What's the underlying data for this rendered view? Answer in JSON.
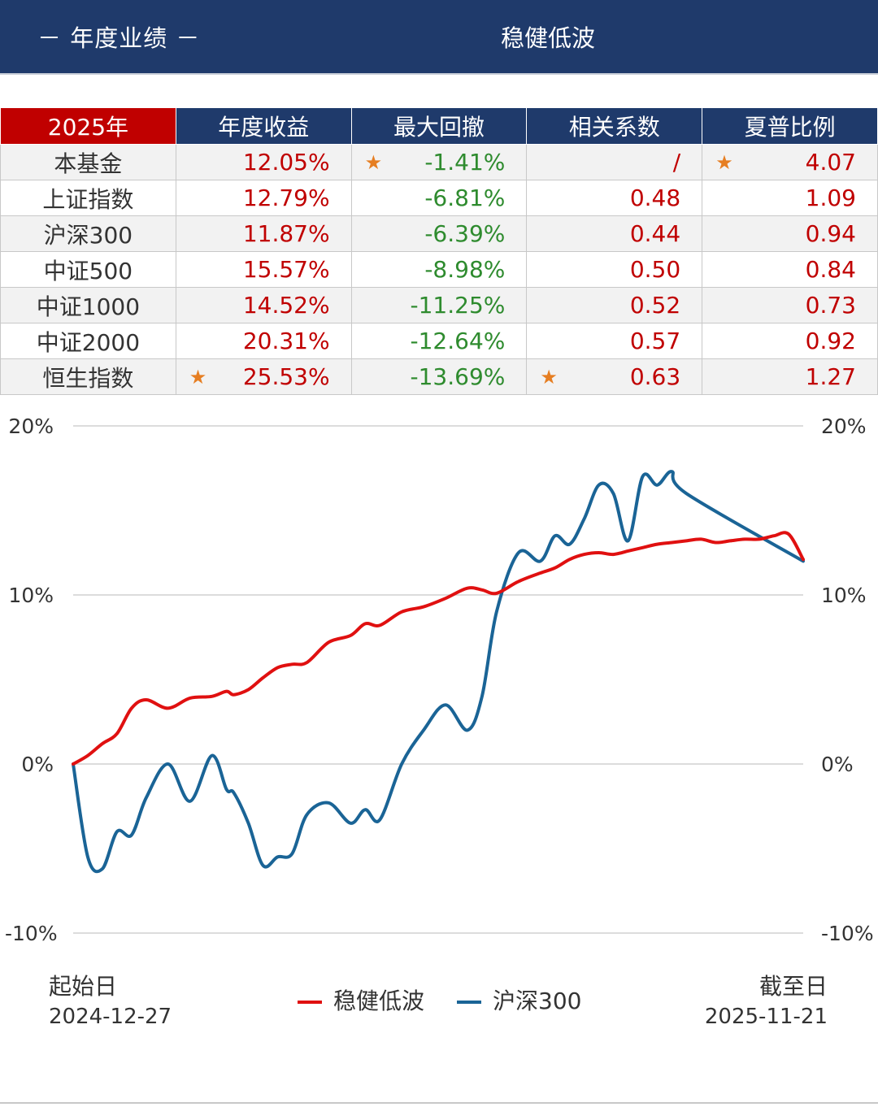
{
  "header": {
    "section_label": "－ 年度业绩 －",
    "fund_name": "稳健低波"
  },
  "table": {
    "columns": [
      "2025年",
      "年度收益",
      "最大回撤",
      "相关系数",
      "夏普比例"
    ],
    "rows": [
      {
        "name": "本基金",
        "return": "12.05%",
        "drawdown": "-1.41%",
        "corr": "/",
        "sharpe": "4.07",
        "stars": [
          "drawdown",
          "sharpe"
        ]
      },
      {
        "name": "上证指数",
        "return": "12.79%",
        "drawdown": "-6.81%",
        "corr": "0.48",
        "sharpe": "1.09",
        "stars": []
      },
      {
        "name": "沪深300",
        "return": "11.87%",
        "drawdown": "-6.39%",
        "corr": "0.44",
        "sharpe": "0.94",
        "stars": []
      },
      {
        "name": "中证500",
        "return": "15.57%",
        "drawdown": "-8.98%",
        "corr": "0.50",
        "sharpe": "0.84",
        "stars": []
      },
      {
        "name": "中证1000",
        "return": "14.52%",
        "drawdown": "-11.25%",
        "corr": "0.52",
        "sharpe": "0.73",
        "stars": []
      },
      {
        "name": "中证2000",
        "return": "20.31%",
        "drawdown": "-12.64%",
        "corr": "0.57",
        "sharpe": "0.92",
        "stars": []
      },
      {
        "name": "恒生指数",
        "return": "25.53%",
        "drawdown": "-13.69%",
        "corr": "0.63",
        "sharpe": "1.27",
        "stars": [
          "return",
          "corr"
        ]
      }
    ],
    "star_symbol": "★",
    "colors": {
      "header_bg": "#1f3a6b",
      "year_bg": "#c00000",
      "positive": "#c00000",
      "negative": "#2e8b2e",
      "star": "#e67e22"
    }
  },
  "chart_data": {
    "type": "line",
    "yticks": [
      "20%",
      "10%",
      "0%",
      "-10%"
    ],
    "ylim": [
      -10,
      20
    ],
    "x": [
      0,
      2,
      4,
      6,
      8,
      10,
      13,
      16,
      19,
      21,
      22,
      24,
      26,
      28,
      30,
      32,
      35,
      38,
      40,
      42,
      45,
      48,
      51,
      54,
      56,
      58,
      61,
      64,
      66,
      68,
      70,
      72,
      74,
      76,
      78,
      80,
      82,
      84,
      86,
      88,
      90,
      92,
      94,
      96,
      98,
      100
    ],
    "series": [
      {
        "name": "稳健低波",
        "color": "#e01010",
        "values": [
          0,
          0.5,
          1.2,
          1.8,
          3.3,
          3.8,
          3.3,
          3.9,
          4.0,
          4.3,
          4.1,
          4.4,
          5.1,
          5.7,
          5.9,
          6.0,
          7.2,
          7.6,
          8.3,
          8.2,
          9.0,
          9.3,
          9.8,
          10.4,
          10.3,
          10.1,
          10.8,
          11.3,
          11.6,
          12.1,
          12.4,
          12.5,
          12.4,
          12.6,
          12.8,
          13.0,
          13.1,
          13.2,
          13.3,
          13.1,
          13.2,
          13.3,
          13.3,
          13.5,
          13.6,
          12.1
        ]
      },
      {
        "name": "沪深300",
        "color": "#1a6496",
        "values": [
          0,
          -5.5,
          -6.2,
          -4.0,
          -4.2,
          -2.0,
          0,
          -2.2,
          0.5,
          -1.5,
          -1.7,
          -3.5,
          -6.0,
          -5.5,
          -5.3,
          -3.0,
          -2.3,
          -3.5,
          -2.7,
          -3.3,
          0.0,
          2.0,
          3.5,
          2.0,
          4.0,
          9.0,
          12.5,
          12.0,
          13.5,
          13.0,
          14.5,
          16.5,
          16.0,
          13.2,
          17.0,
          16.5,
          17.3,
          16.0,
          12.0,
          12.0,
          12.0,
          12.0,
          12.0,
          12.0,
          12.0,
          12.0
        ]
      }
    ],
    "start_label": "起始日",
    "start_date": "2024-12-27",
    "end_label": "截至日",
    "end_date": "2025-11-21",
    "grid": true
  }
}
